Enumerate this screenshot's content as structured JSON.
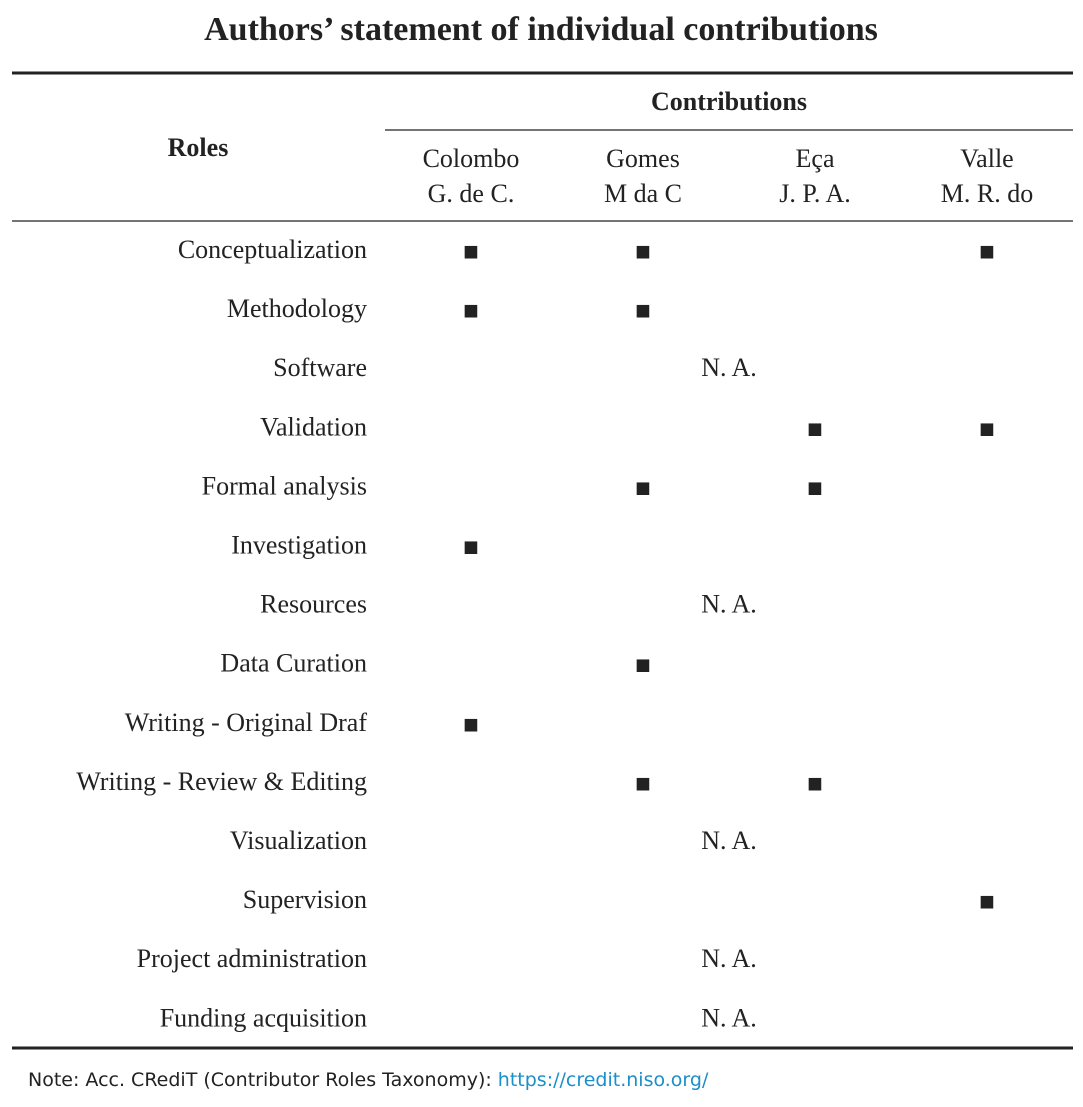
{
  "title": "Authors’ statement of individual contributions",
  "header": {
    "roles": "Roles",
    "contributions": "Contributions",
    "authors": [
      {
        "lines": [
          "Colombo",
          "G. de C."
        ]
      },
      {
        "lines": [
          "Gomes",
          "M da C"
        ]
      },
      {
        "lines": [
          "Eça",
          "J. P. A."
        ]
      },
      {
        "lines": [
          "Valle",
          "M. R. do"
        ]
      }
    ]
  },
  "rows": [
    {
      "role": "Conceptualization",
      "cells": [
        "■",
        "■",
        null,
        "■"
      ]
    },
    {
      "role": "Methodology",
      "cells": [
        "■",
        "■",
        null,
        null
      ]
    },
    {
      "role": "Software",
      "note": "N. A."
    },
    {
      "role": "Validation",
      "cells": [
        null,
        null,
        "■",
        "■"
      ]
    },
    {
      "role": "Formal analysis",
      "cells": [
        null,
        "■",
        "■",
        null
      ]
    },
    {
      "role": "Investigation",
      "cells": [
        "■",
        null,
        null,
        null
      ]
    },
    {
      "role": "Resources",
      "note": "N. A."
    },
    {
      "role": "Data Curation",
      "cells": [
        null,
        "■",
        null,
        null
      ]
    },
    {
      "role": "Writing - Original Draf",
      "cells": [
        "■",
        null,
        null,
        null
      ]
    },
    {
      "role": "Writing - Review & Editing",
      "cells": [
        null,
        "■",
        "■",
        null
      ]
    },
    {
      "role": "Visualization",
      "note": "N. A."
    },
    {
      "role": "Supervision",
      "cells": [
        null,
        null,
        null,
        "■"
      ]
    },
    {
      "role": "Project administration",
      "note": "N. A."
    },
    {
      "role": "Funding acquisition",
      "note": "N. A."
    }
  ],
  "footnote": {
    "text": "Note: Acc. CRediT (Contributor Roles Taxonomy): ",
    "link": "https://credit.niso.org/"
  }
}
